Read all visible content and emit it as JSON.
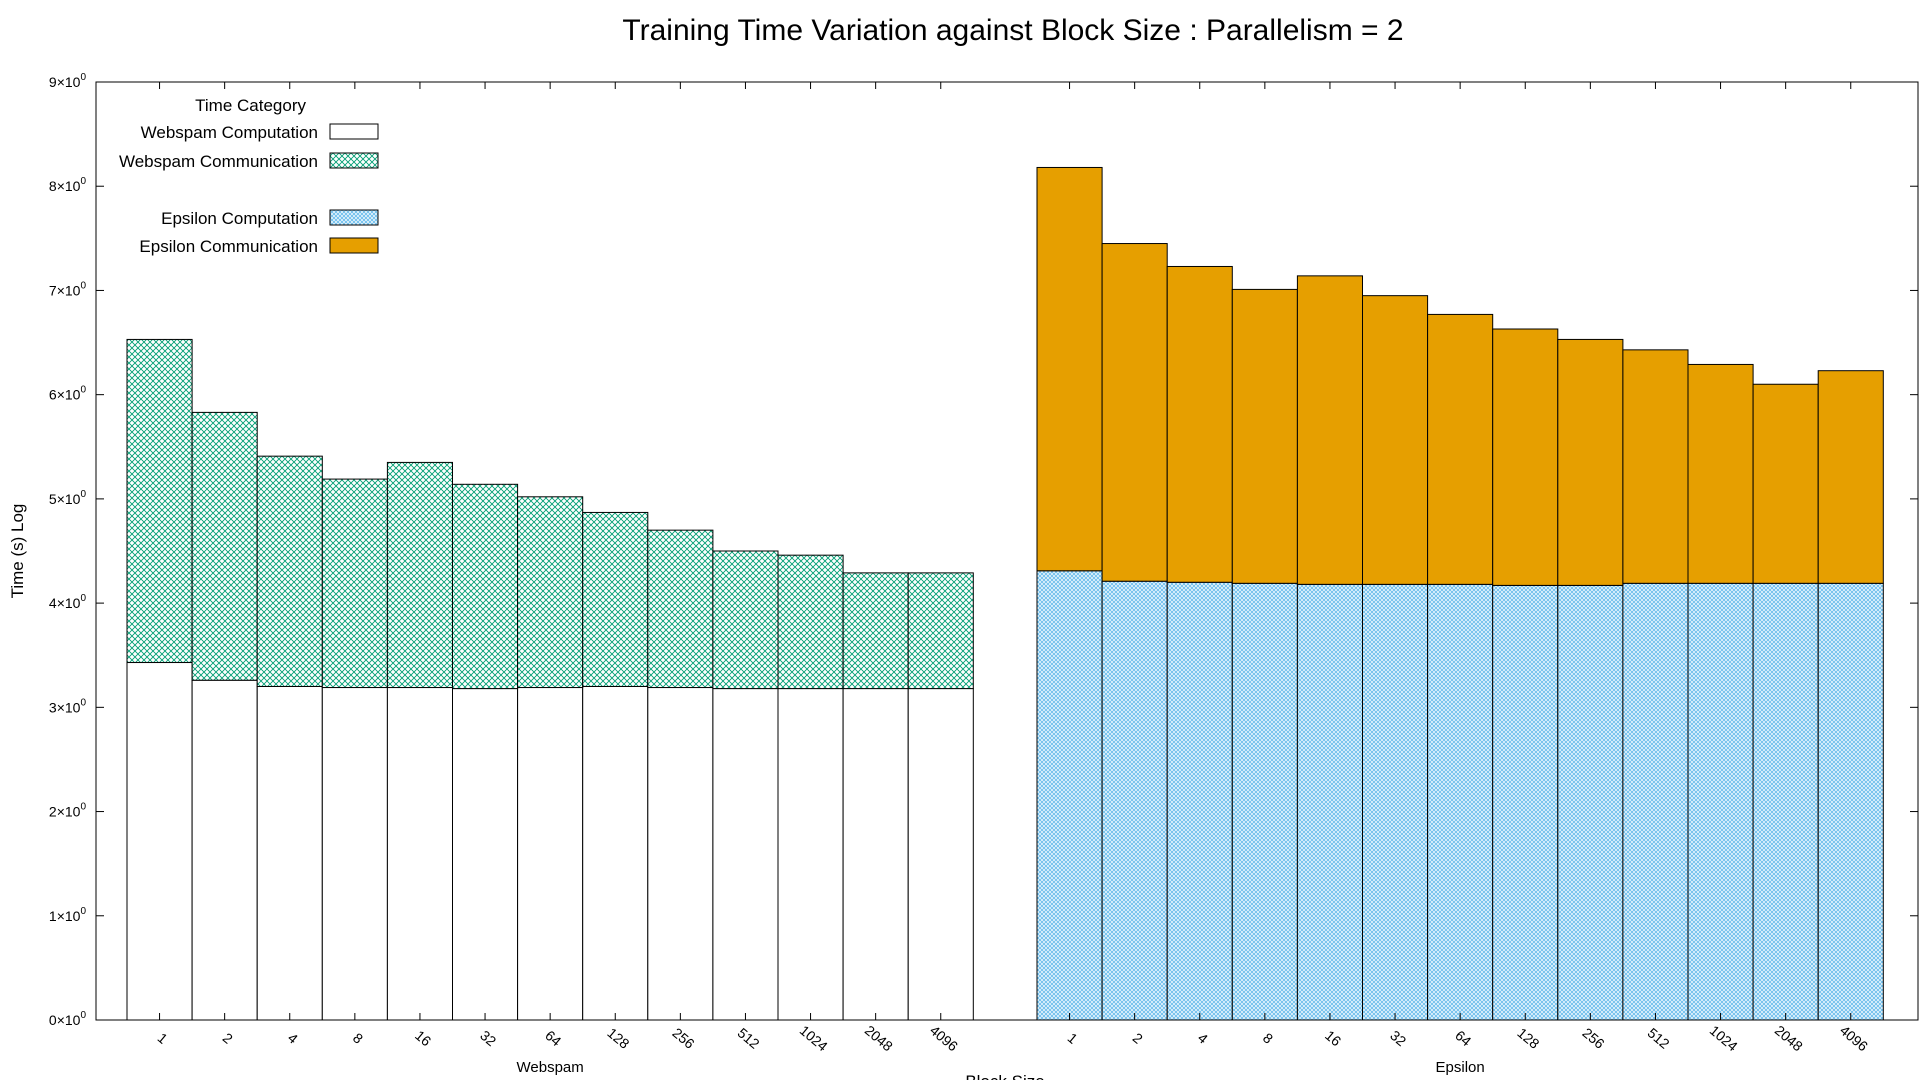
{
  "chart_data": {
    "type": "bar",
    "stacked": true,
    "title": "Training Time Variation against Block Size : Parallelism = 2",
    "xlabel": "Block Size",
    "ylabel": "Time (s) Log",
    "ylim": [
      0,
      9
    ],
    "yticks": [
      {
        "value": 0,
        "mant": "0",
        "exp": "0"
      },
      {
        "value": 1,
        "mant": "1",
        "exp": "0"
      },
      {
        "value": 2,
        "mant": "2",
        "exp": "0"
      },
      {
        "value": 3,
        "mant": "3",
        "exp": "0"
      },
      {
        "value": 4,
        "mant": "4",
        "exp": "0"
      },
      {
        "value": 5,
        "mant": "5",
        "exp": "0"
      },
      {
        "value": 6,
        "mant": "6",
        "exp": "0"
      },
      {
        "value": 7,
        "mant": "7",
        "exp": "0"
      },
      {
        "value": 8,
        "mant": "8",
        "exp": "0"
      },
      {
        "value": 9,
        "mant": "9",
        "exp": "0"
      }
    ],
    "ytick_times": "×",
    "grid": false,
    "legend": {
      "position": "top-left",
      "title": "Time Category",
      "entries": [
        {
          "label": "Webspam Computation",
          "color": "#ffffff",
          "pattern": "none"
        },
        {
          "label": "Webspam Communication",
          "color": "#009e73",
          "pattern": "crosshatch"
        },
        {
          "label": "Epsilon Computation",
          "color": "#56b4e9",
          "pattern": "fine-crosshatch"
        },
        {
          "label": "Epsilon Communication",
          "color": "#e69f00",
          "pattern": "solid"
        }
      ]
    },
    "categories": [
      "1",
      "2",
      "4",
      "8",
      "16",
      "32",
      "64",
      "128",
      "256",
      "512",
      "1024",
      "2048",
      "4096"
    ],
    "groups": [
      {
        "name": "Webspam",
        "series": [
          {
            "name": "Webspam Computation",
            "values": [
              3.43,
              3.26,
              3.2,
              3.19,
              3.19,
              3.18,
              3.19,
              3.2,
              3.19,
              3.18,
              3.18,
              3.18,
              3.18
            ]
          },
          {
            "name": "Webspam Communication",
            "values": [
              3.1,
              2.57,
              2.21,
              2.0,
              2.16,
              1.96,
              1.83,
              1.67,
              1.51,
              1.32,
              1.28,
              1.11,
              1.11
            ]
          }
        ]
      },
      {
        "name": "Epsilon",
        "series": [
          {
            "name": "Epsilon Computation",
            "values": [
              4.31,
              4.21,
              4.2,
              4.19,
              4.18,
              4.18,
              4.18,
              4.17,
              4.17,
              4.19,
              4.19,
              4.19,
              4.19
            ]
          },
          {
            "name": "Epsilon Communication",
            "values": [
              3.87,
              3.24,
              3.03,
              2.82,
              2.96,
              2.77,
              2.59,
              2.46,
              2.36,
              2.24,
              2.1,
              1.91,
              2.04
            ]
          }
        ]
      }
    ]
  }
}
